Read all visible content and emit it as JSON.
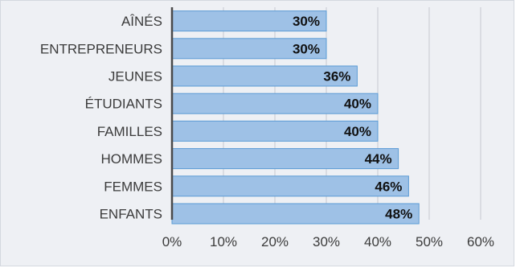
{
  "chart_data": {
    "type": "bar",
    "orientation": "horizontal",
    "categories": [
      "AÎNÉS",
      "ENTREPRENEURS",
      "JEUNES",
      "ÉTUDIANTS",
      "FAMILLES",
      "HOMMES",
      "FEMMES",
      "ENFANTS"
    ],
    "values": [
      30,
      30,
      36,
      40,
      40,
      44,
      46,
      48
    ],
    "data_labels": [
      "30%",
      "30%",
      "36%",
      "40%",
      "40%",
      "44%",
      "46%",
      "48%"
    ],
    "x_ticks": [
      0,
      10,
      20,
      30,
      40,
      50,
      60
    ],
    "x_tick_labels": [
      "0%",
      "10%",
      "20%",
      "30%",
      "40%",
      "50%",
      "60%"
    ],
    "xlim": [
      0,
      60
    ],
    "grid": true,
    "legend": "none",
    "title": "",
    "xlabel": "",
    "ylabel": ""
  },
  "colors": {
    "background": "#eef0f4",
    "bar_fill": "#9ec1e6",
    "bar_stroke": "#5b9bd5",
    "gridline": "#c5c9d0",
    "axis_line": "#4a4a4a"
  }
}
